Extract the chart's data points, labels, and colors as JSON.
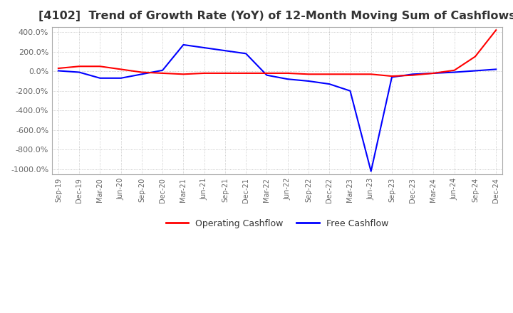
{
  "title": "[4102]  Trend of Growth Rate (YoY) of 12-Month Moving Sum of Cashflows",
  "title_fontsize": 11.5,
  "title_color": "#333333",
  "background_color": "#ffffff",
  "plot_bg_color": "#ffffff",
  "grid_color": "#bbbbbb",
  "grid_style": "dotted",
  "ylim": [
    -1050,
    450
  ],
  "yticks": [
    400,
    200,
    0,
    -200,
    -400,
    -600,
    -800,
    -1000
  ],
  "legend_labels": [
    "Operating Cashflow",
    "Free Cashflow"
  ],
  "legend_colors": [
    "#ff0000",
    "#0000ff"
  ],
  "x_labels": [
    "Sep-19",
    "Dec-19",
    "Mar-20",
    "Jun-20",
    "Sep-20",
    "Dec-20",
    "Mar-21",
    "Jun-21",
    "Sep-21",
    "Dec-21",
    "Mar-22",
    "Jun-22",
    "Sep-22",
    "Dec-22",
    "Mar-23",
    "Jun-23",
    "Sep-23",
    "Dec-23",
    "Mar-24",
    "Jun-24",
    "Sep-24",
    "Dec-24"
  ],
  "operating_cashflow": [
    30,
    50,
    50,
    20,
    -10,
    -20,
    -30,
    -20,
    -20,
    -20,
    -20,
    -20,
    -30,
    -30,
    -30,
    -30,
    -50,
    -40,
    -20,
    10,
    150,
    420
  ],
  "free_cashflow": [
    5,
    -10,
    -70,
    -70,
    -30,
    10,
    270,
    240,
    210,
    180,
    -40,
    -80,
    -100,
    -130,
    -200,
    -1020,
    -60,
    -30,
    -20,
    -10,
    5,
    20
  ]
}
